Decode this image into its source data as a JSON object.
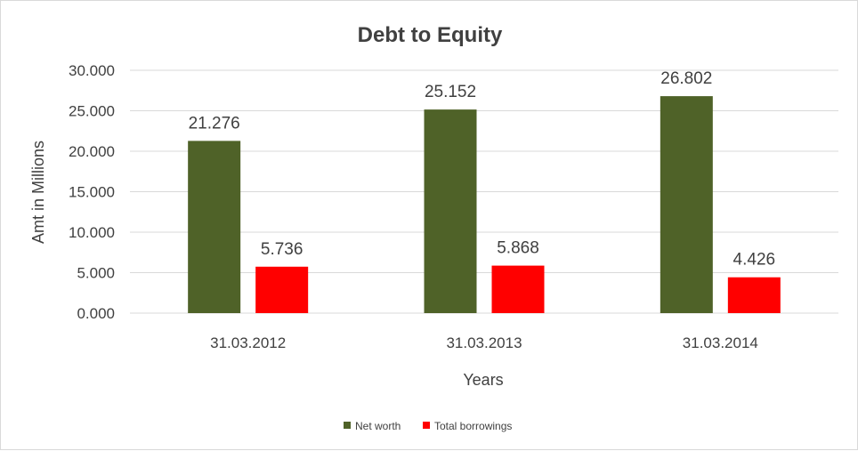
{
  "chart_data": {
    "type": "bar",
    "title": "Debt to Equity",
    "xlabel": "Years",
    "ylabel": "Amt in Millions",
    "categories": [
      "31.03.2012",
      "31.03.2013",
      "31.03.2014"
    ],
    "series": [
      {
        "name": "Net worth",
        "values": [
          21.276,
          25.152,
          26.802
        ],
        "color": "#4f6228"
      },
      {
        "name": "Total borrowings",
        "values": [
          5.736,
          5.868,
          4.426
        ],
        "color": "#ff0000"
      }
    ],
    "value_labels": [
      [
        "21.276",
        "25.152",
        "26.802"
      ],
      [
        "5.736",
        "5.868",
        "4.426"
      ]
    ],
    "yticks": [
      0,
      5,
      10,
      15,
      20,
      25,
      30
    ],
    "ytick_labels": [
      "0.000",
      "5.000",
      "10.000",
      "15.000",
      "20.000",
      "25.000",
      "30.000"
    ],
    "ylim": [
      0,
      30
    ],
    "grid": true,
    "legend_position": "bottom"
  }
}
